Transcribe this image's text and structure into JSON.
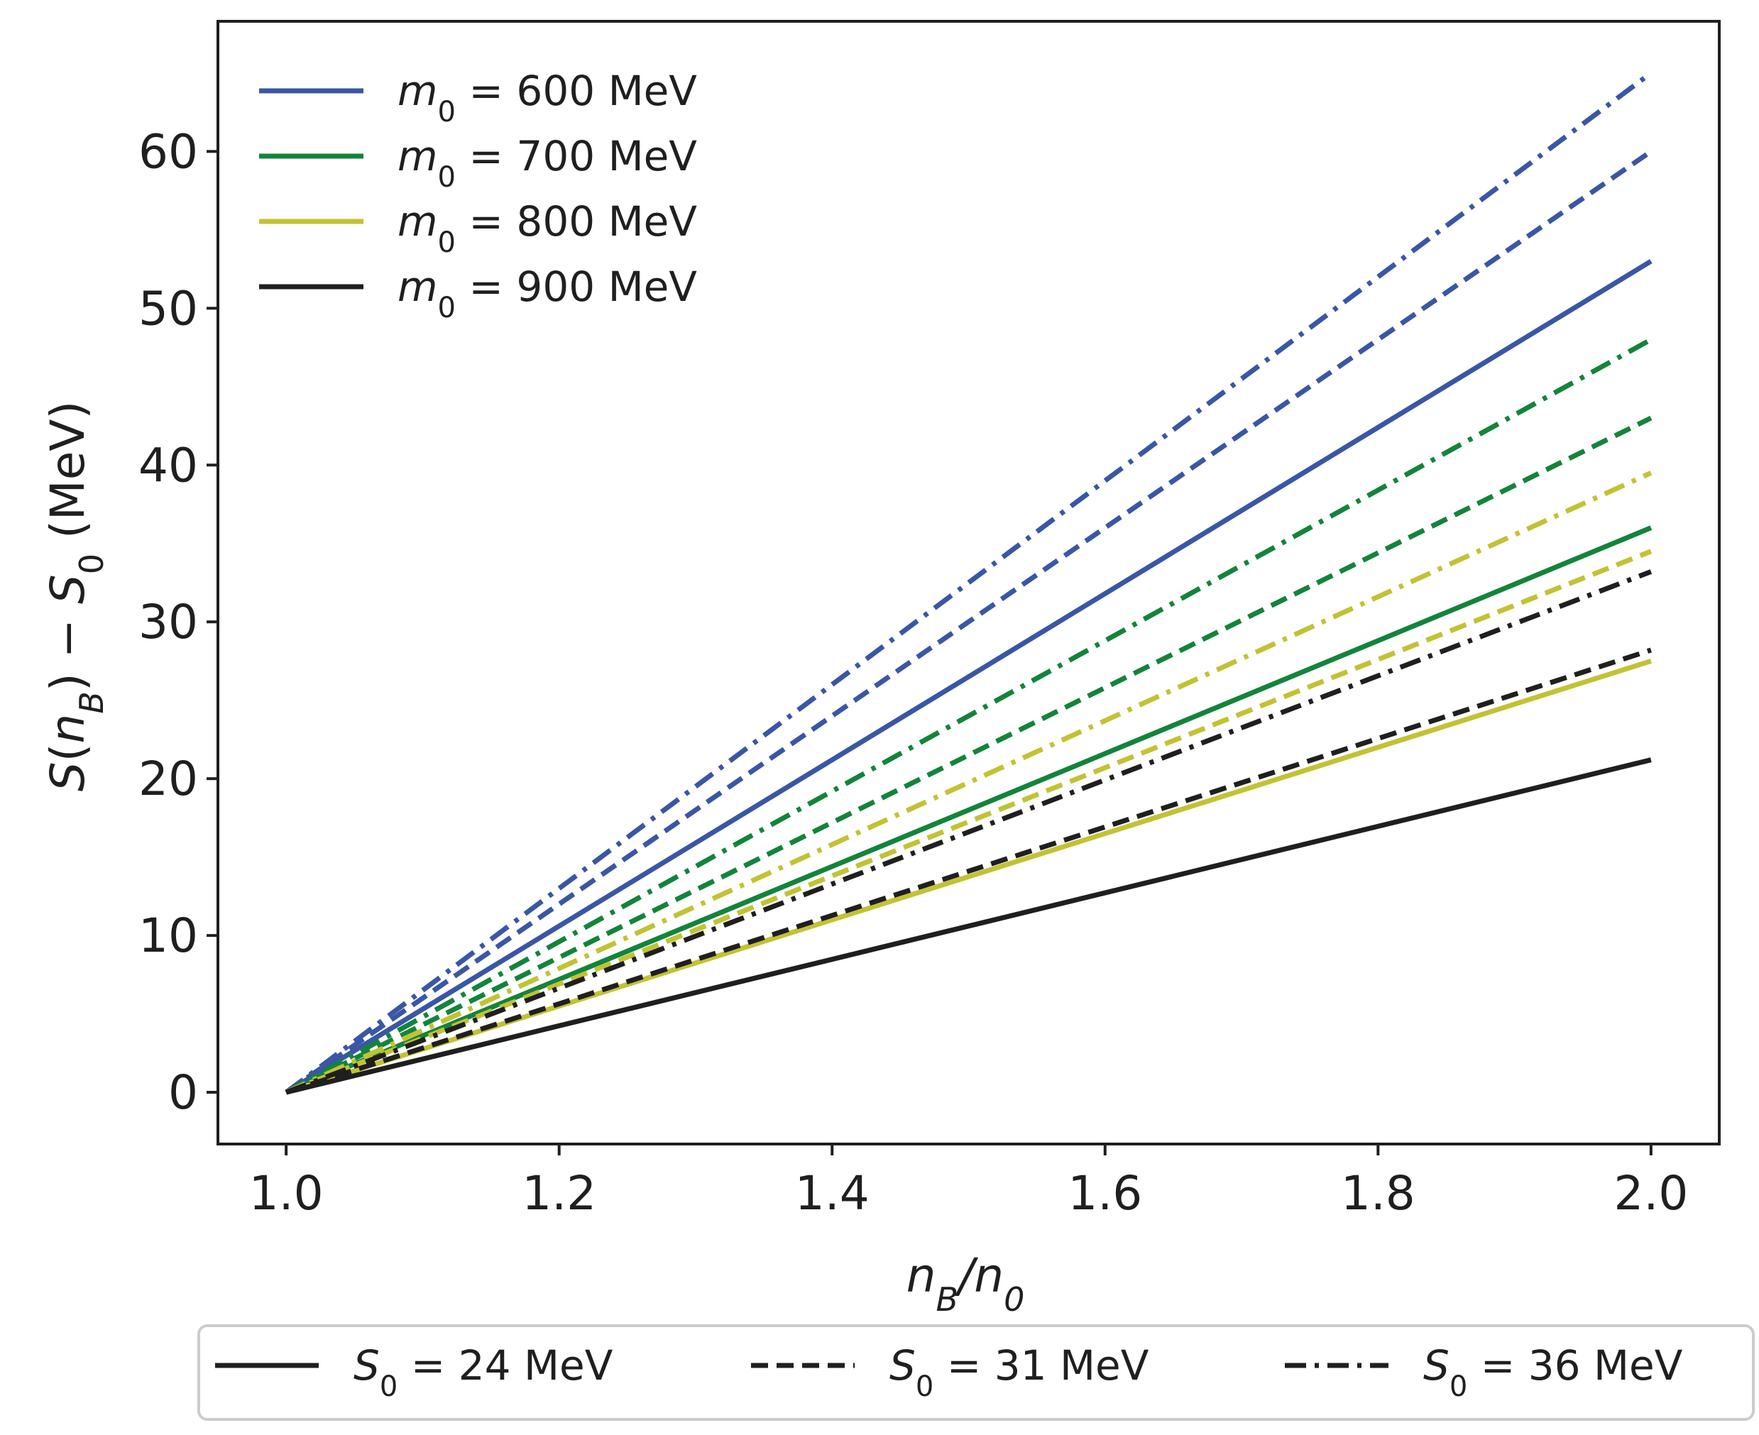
{
  "chart_data": {
    "type": "line",
    "xlabel": "n_B/n_0",
    "ylabel": "S(n_B) − S_0 (MeV)",
    "xlim": [
      0.95,
      2.05
    ],
    "ylim": [
      -3.3,
      68.3
    ],
    "xticks": [
      1.0,
      1.2,
      1.4,
      1.6,
      1.8,
      2.0
    ],
    "xtick_labels": [
      "1.0",
      "1.2",
      "1.4",
      "1.6",
      "1.8",
      "2.0"
    ],
    "yticks": [
      0,
      10,
      20,
      30,
      40,
      50,
      60
    ],
    "ytick_labels": [
      "0",
      "10",
      "20",
      "30",
      "40",
      "50",
      "60"
    ],
    "x": [
      1.0,
      2.0
    ],
    "mass_legend": [
      {
        "label": "m0 = 600 MeV",
        "sym": "m",
        "sub": "0",
        "rest": " = 600 MeV",
        "color": "#3a56a5"
      },
      {
        "label": "m0 = 700 MeV",
        "sym": "m",
        "sub": "0",
        "rest": " = 700 MeV",
        "color": "#13843b"
      },
      {
        "label": "m0 = 800 MeV",
        "sym": "m",
        "sub": "0",
        "rest": " = 800 MeV",
        "color": "#c2c235"
      },
      {
        "label": "m0 = 900 MeV",
        "sym": "m",
        "sub": "0",
        "rest": " = 900 MeV",
        "color": "#1f1f1f"
      }
    ],
    "style_legend": [
      {
        "label": "S0 = 24 MeV",
        "sym": "S",
        "sub": "0",
        "rest": " = 24 MeV",
        "dash": "solid"
      },
      {
        "label": "S0 = 31 MeV",
        "sym": "S",
        "sub": "0",
        "rest": " = 31 MeV",
        "dash": "dashed"
      },
      {
        "label": "S0 = 36 MeV",
        "sym": "S",
        "sub": "0",
        "rest": " = 36 MeV",
        "dash": "dashdot"
      }
    ],
    "series": [
      {
        "name": "m0=600, S0=24",
        "color": "#3a56a5",
        "dash": "solid",
        "values": [
          0,
          53.0
        ]
      },
      {
        "name": "m0=600, S0=31",
        "color": "#3a56a5",
        "dash": "dashed",
        "values": [
          0,
          60.0
        ]
      },
      {
        "name": "m0=600, S0=36",
        "color": "#3a56a5",
        "dash": "dashdot",
        "values": [
          0,
          65.0
        ]
      },
      {
        "name": "m0=700, S0=24",
        "color": "#13843b",
        "dash": "solid",
        "values": [
          0,
          36.0
        ]
      },
      {
        "name": "m0=700, S0=31",
        "color": "#13843b",
        "dash": "dashed",
        "values": [
          0,
          43.0
        ]
      },
      {
        "name": "m0=700, S0=36",
        "color": "#13843b",
        "dash": "dashdot",
        "values": [
          0,
          48.0
        ]
      },
      {
        "name": "m0=800, S0=24",
        "color": "#c2c235",
        "dash": "solid",
        "values": [
          0,
          27.5
        ]
      },
      {
        "name": "m0=800, S0=31",
        "color": "#c2c235",
        "dash": "dashed",
        "values": [
          0,
          34.5
        ]
      },
      {
        "name": "m0=800, S0=36",
        "color": "#c2c235",
        "dash": "dashdot",
        "values": [
          0,
          39.5
        ]
      },
      {
        "name": "m0=900, S0=24",
        "color": "#1f1f1f",
        "dash": "solid",
        "values": [
          0,
          21.2
        ]
      },
      {
        "name": "m0=900, S0=31",
        "color": "#1f1f1f",
        "dash": "dashed",
        "values": [
          0,
          28.2
        ]
      },
      {
        "name": "m0=900, S0=36",
        "color": "#1f1f1f",
        "dash": "dashdot",
        "values": [
          0,
          33.2
        ]
      }
    ]
  }
}
